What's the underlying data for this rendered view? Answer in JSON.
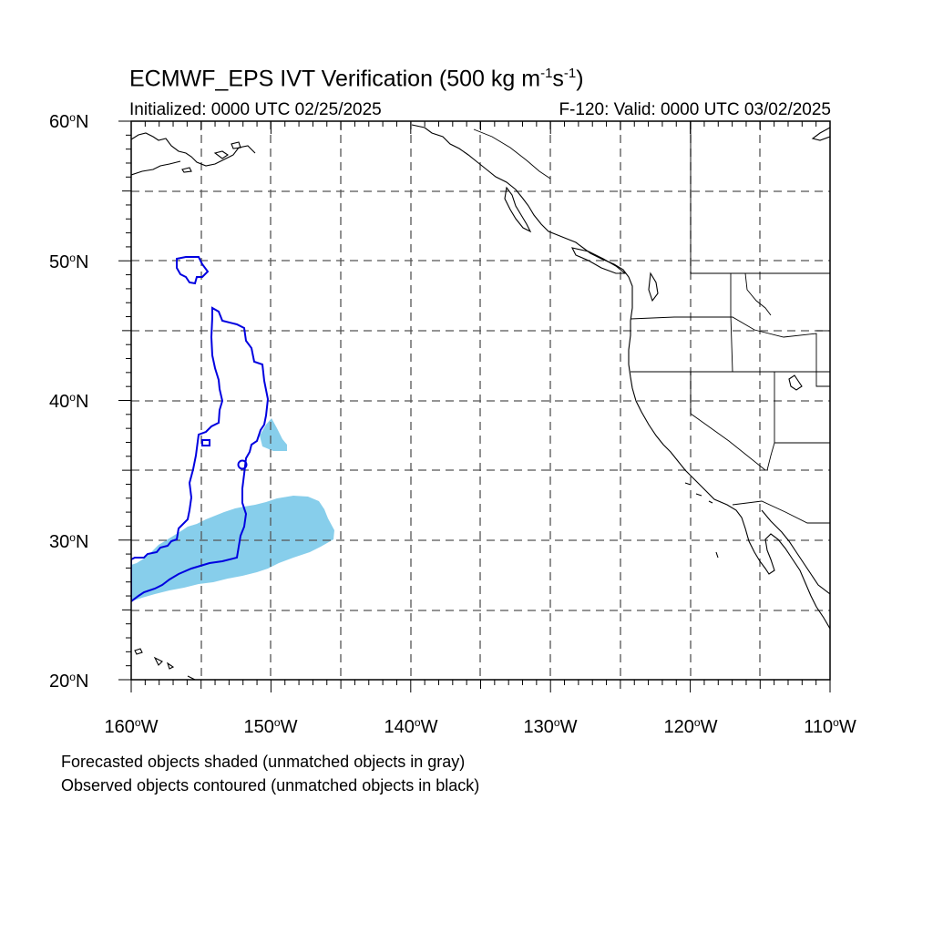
{
  "header": {
    "title_main": "ECMWF_EPS IVT Verification (500 kg m",
    "title_exp1": "-1",
    "title_mid": "s",
    "title_exp2": "-1",
    "title_end": ")",
    "initialized": "Initialized: 0000 UTC 02/25/2025",
    "valid": "F-120: Valid: 0000 UTC 03/02/2025"
  },
  "axes": {
    "lat_labels": [
      {
        "num": "60",
        "hem": "N",
        "value": 60
      },
      {
        "num": "50",
        "hem": "N",
        "value": 50
      },
      {
        "num": "40",
        "hem": "N",
        "value": 40
      },
      {
        "num": "30",
        "hem": "N",
        "value": 30
      },
      {
        "num": "20",
        "hem": "N",
        "value": 20
      }
    ],
    "lon_labels": [
      {
        "num": "160",
        "hem": "W",
        "value": -160
      },
      {
        "num": "150",
        "hem": "W",
        "value": -150
      },
      {
        "num": "140",
        "hem": "W",
        "value": -140
      },
      {
        "num": "130",
        "hem": "W",
        "value": -130
      },
      {
        "num": "120",
        "hem": "W",
        "value": -120
      },
      {
        "num": "110",
        "hem": "W",
        "value": -110
      }
    ],
    "lat_range": [
      20,
      60
    ],
    "lon_range": [
      -160,
      -110
    ],
    "grid_spacing_deg": 5
  },
  "legend": {
    "line1": "Forecasted objects shaded (unmatched objects in gray)",
    "line2": "Observed objects contoured (unmatched objects in black)"
  },
  "colors": {
    "forecast_fill": "#87ceeb",
    "observed_contour": "#0000e0",
    "coastline": "#000000",
    "grid": "#555555"
  }
}
